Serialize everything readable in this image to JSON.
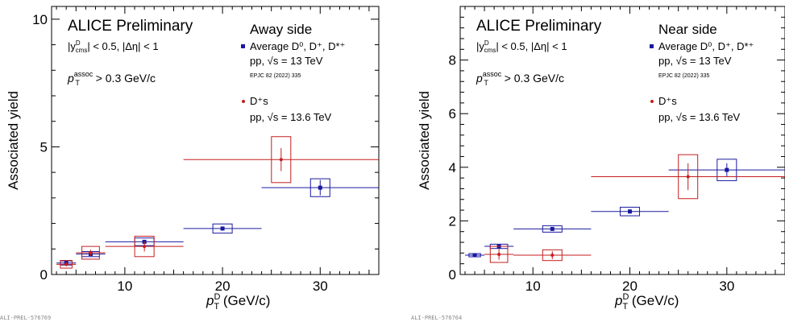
{
  "colors": {
    "blue": "#1a1aa0",
    "red": "#c41e1e",
    "axis": "#000000"
  },
  "chart_data": [
    {
      "type": "scatter",
      "title": "ALICE Preliminary",
      "panel": "Away side",
      "ylabel": "Associated yield",
      "xlabel": {
        "main": "p",
        "sup": "D",
        "sub": "T",
        "unit": " (GeV/c)"
      },
      "xlim": [
        2.5,
        36
      ],
      "ylim": [
        0,
        10.5
      ],
      "xticks": [
        10,
        20,
        30
      ],
      "yticks": [
        0,
        5,
        10
      ],
      "annotations": {
        "rapidity": "|y",
        "rapidity_sup": "D",
        "rapidity_sub": "cms",
        "rapidity_rest": "| < 0.5, |Δη| < 1",
        "pt_assoc": "p",
        "pt_assoc_sup": "assoc",
        "pt_assoc_sub": "T",
        "pt_assoc_rest": " > 0.3 GeV/c"
      },
      "legend": [
        {
          "marker": "square",
          "line1": "Average D⁰, D⁺, D*⁺",
          "line2": "pp, √s = 13 TeV",
          "line3": "EPJC 82 (2022) 335"
        },
        {
          "marker": "circle",
          "line1": "D⁺s",
          "line2": "pp, √s = 13.6 TeV",
          "line3": ""
        }
      ],
      "series": [
        {
          "name": "Average D⁰, D⁺, D*⁺",
          "marker": "square",
          "color": "#1a1aa0",
          "points": [
            {
              "x": 4,
              "xlo": 3,
              "xhi": 5,
              "y": 0.45,
              "stat": 0.04,
              "syst": 0.08
            },
            {
              "x": 6.5,
              "xlo": 5,
              "xhi": 8,
              "y": 0.8,
              "stat": 0.05,
              "syst": 0.1
            },
            {
              "x": 12,
              "xlo": 8,
              "xhi": 16,
              "y": 1.28,
              "stat": 0.06,
              "syst": 0.15
            },
            {
              "x": 20,
              "xlo": 16,
              "xhi": 24,
              "y": 1.8,
              "stat": 0.08,
              "syst": 0.18
            },
            {
              "x": 30,
              "xlo": 24,
              "xhi": 36,
              "y": 3.4,
              "stat": 0.3,
              "syst": 0.35
            }
          ]
        },
        {
          "name": "D⁺s",
          "marker": "circle",
          "color": "#c41e1e",
          "points": [
            {
              "x": 4,
              "xlo": 3,
              "xhi": 5,
              "y": 0.4,
              "stat": 0.08,
              "syst": 0.15
            },
            {
              "x": 6.5,
              "xlo": 5,
              "xhi": 8,
              "y": 0.85,
              "stat": 0.12,
              "syst": 0.25
            },
            {
              "x": 12,
              "xlo": 8,
              "xhi": 16,
              "y": 1.1,
              "stat": 0.2,
              "syst": 0.4
            },
            {
              "x": 26,
              "xlo": 16,
              "xhi": 36,
              "y": 4.5,
              "stat": 0.45,
              "syst": 0.9
            }
          ]
        }
      ],
      "footer": "ALI-PREL-576769"
    },
    {
      "type": "scatter",
      "title": "ALICE Preliminary",
      "panel": "Near side",
      "ylabel": "Associated yield",
      "xlabel": {
        "main": "p",
        "sup": "D",
        "sub": "T",
        "unit": " (GeV/c)"
      },
      "xlim": [
        2.5,
        36
      ],
      "ylim": [
        0,
        10
      ],
      "xticks": [
        10,
        20,
        30
      ],
      "yticks": [
        0,
        2,
        4,
        6,
        8
      ],
      "annotations": {
        "rapidity": "|y",
        "rapidity_sup": "D",
        "rapidity_sub": "cms",
        "rapidity_rest": "| < 0.5, |Δη| < 1",
        "pt_assoc": "p",
        "pt_assoc_sup": "assoc",
        "pt_assoc_sub": "T",
        "pt_assoc_rest": " > 0.3 GeV/c"
      },
      "legend": [
        {
          "marker": "square",
          "line1": "Average D⁰, D⁺, D*⁺",
          "line2": "pp, √s = 13 TeV",
          "line3": "EPJC 82 (2022) 335"
        },
        {
          "marker": "circle",
          "line1": "D⁺s",
          "line2": "pp, √s = 13.6 TeV",
          "line3": ""
        }
      ],
      "series": [
        {
          "name": "Average D⁰, D⁺, D*⁺",
          "marker": "square",
          "color": "#1a1aa0",
          "points": [
            {
              "x": 4,
              "xlo": 3,
              "xhi": 5,
              "y": 0.72,
              "stat": 0.03,
              "syst": 0.06
            },
            {
              "x": 6.5,
              "xlo": 5,
              "xhi": 8,
              "y": 1.05,
              "stat": 0.04,
              "syst": 0.08
            },
            {
              "x": 12,
              "xlo": 8,
              "xhi": 16,
              "y": 1.7,
              "stat": 0.06,
              "syst": 0.12
            },
            {
              "x": 20,
              "xlo": 16,
              "xhi": 24,
              "y": 2.35,
              "stat": 0.08,
              "syst": 0.16
            },
            {
              "x": 30,
              "xlo": 24,
              "xhi": 36,
              "y": 3.9,
              "stat": 0.25,
              "syst": 0.4
            }
          ]
        },
        {
          "name": "D⁺s",
          "marker": "circle",
          "color": "#c41e1e",
          "points": [
            {
              "x": 6.5,
              "xlo": 5,
              "xhi": 8,
              "y": 0.75,
              "stat": 0.2,
              "syst": 0.3
            },
            {
              "x": 12,
              "xlo": 8,
              "xhi": 16,
              "y": 0.72,
              "stat": 0.15,
              "syst": 0.2
            },
            {
              "x": 26,
              "xlo": 16,
              "xhi": 36,
              "y": 3.65,
              "stat": 0.5,
              "syst": 0.82
            }
          ]
        }
      ],
      "footer": "ALI-PREL-576764"
    }
  ]
}
